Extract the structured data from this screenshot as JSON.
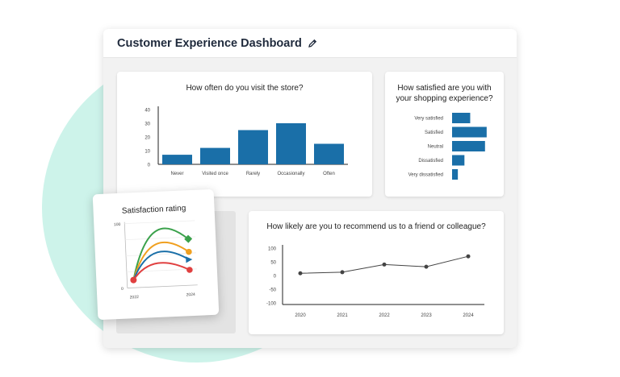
{
  "window": {
    "title": "Customer Experience Dashboard"
  },
  "icons": {
    "edit": "pencil-icon"
  },
  "colors": {
    "bar": "#1a6fa8",
    "accent_bg": "#cdf3ea",
    "line": "#444444"
  },
  "visit_chart": {
    "title": "How often do you  visit the store?",
    "chart_data": {
      "type": "bar",
      "categories": [
        "Never",
        "Visited once",
        "Rarely",
        "Occasionally",
        "Often"
      ],
      "values": [
        7,
        12,
        25,
        30,
        15
      ],
      "ylim": [
        0,
        40
      ],
      "yticks": [
        "40",
        "30",
        "20",
        "10",
        "0"
      ]
    }
  },
  "satisfaction_chart": {
    "title_line1": "How satisfied are you with",
    "title_line2": "your shopping experience?",
    "chart_data": {
      "type": "bar",
      "orientation": "horizontal",
      "categories": [
        "Very satisfied",
        "Satisfied",
        "Neutral",
        "Dissatisfied",
        "Very dissatisfied"
      ],
      "values": [
        22,
        42,
        40,
        15,
        7
      ]
    }
  },
  "recommend_chart": {
    "title": "How likely are you to recommend us to a friend or colleague?",
    "chart_data": {
      "type": "line",
      "x": [
        "2020",
        "2021",
        "2022",
        "2023",
        "2024"
      ],
      "y": [
        8,
        12,
        40,
        32,
        70
      ],
      "ylim": [
        -100,
        100
      ],
      "yticks": [
        "100",
        "50",
        "0",
        "-50",
        "-100"
      ]
    }
  },
  "rating_chart": {
    "title": "Satisfaction rating",
    "chart_data": {
      "type": "line",
      "x_labels": [
        "2022",
        "2024"
      ],
      "yticks": [
        "100",
        "0"
      ],
      "series": [
        {
          "color": "#3aa14b",
          "start": 12,
          "end": 72
        },
        {
          "color": "#f0a020",
          "start": 12,
          "end": 52
        },
        {
          "color": "#1a6fa8",
          "start": 12,
          "end": 40
        },
        {
          "color": "#e04040",
          "start": 12,
          "end": 24
        }
      ]
    }
  }
}
